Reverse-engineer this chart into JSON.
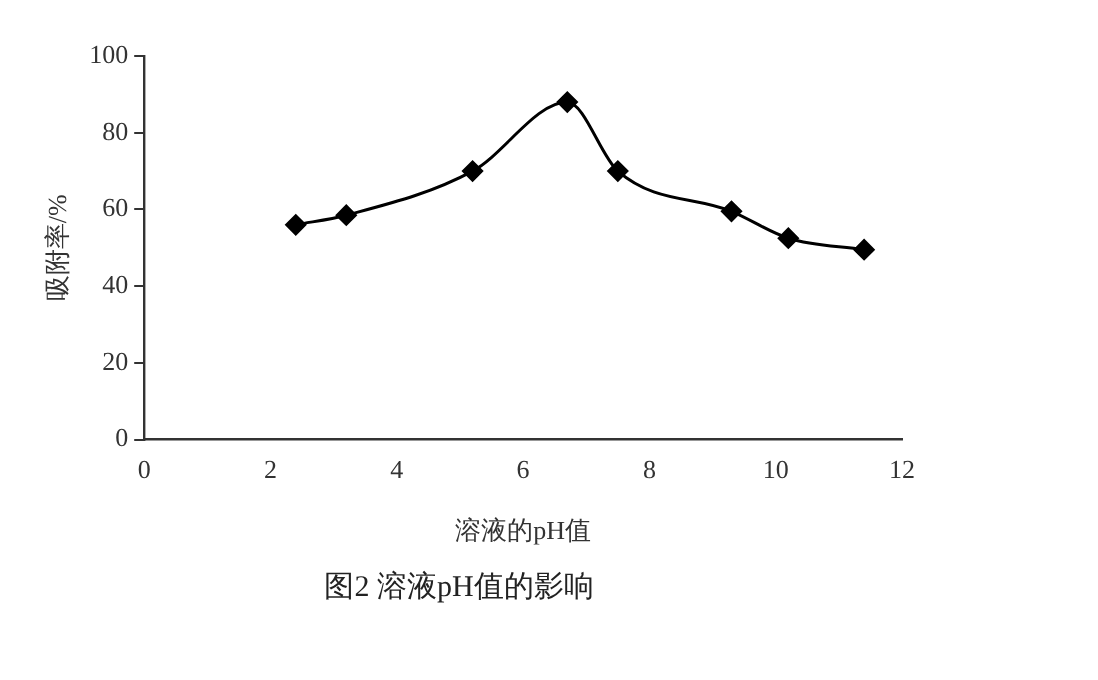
{
  "chart_data": {
    "type": "line",
    "xlabel": "溶液的pH值",
    "ylabel": "吸附率/%",
    "annotations": [
      "图2 溶液pH值的影响"
    ],
    "x": [
      2.4,
      3.2,
      5.2,
      6.7,
      7.5,
      9.3,
      10.2,
      11.4
    ],
    "series": [
      {
        "color": "#000000",
        "values": [
          56,
          58.5,
          70,
          88,
          70,
          59.5,
          52.5,
          49.5
        ]
      }
    ],
    "xlim": [
      0,
      12
    ],
    "xticks": [
      0,
      2,
      4,
      6,
      8,
      10,
      12
    ],
    "ylim": [
      0,
      100
    ],
    "yticks": [
      0,
      20,
      40,
      60,
      80,
      100
    ],
    "grid": false,
    "legend": false,
    "marker": "diamond",
    "line_style": "solid"
  }
}
